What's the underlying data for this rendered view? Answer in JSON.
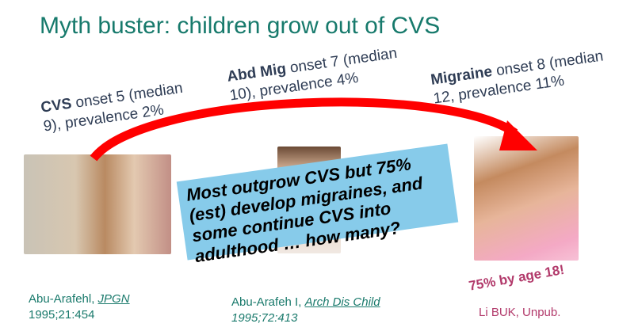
{
  "title": "Myth buster:  children grow out of CVS",
  "labels": [
    {
      "bold": "CVS",
      "line1": " onset 5 (median",
      "line2": "9), prevalence 2%"
    },
    {
      "bold": "Abd Mig",
      "line1": " onset 7  (median",
      "line2": "10), prevalence 4%"
    },
    {
      "bold": "Migraine",
      "line1": " onset 8 (median",
      "line2": "12, prevalence 11%"
    }
  ],
  "callout": "Most outgrow CVS but 75% (est) develop migraines, and some continue CVS into adulthood … how many?",
  "citations": [
    {
      "author": "Abu-Arafehl, ",
      "journal": "JPGN",
      "ref": "1995;21:454"
    },
    {
      "author": "Abu-Arafeh I, ",
      "journal": "Arch Dis Child",
      "ref": "1995;72:413"
    }
  ],
  "note": "75% by age 18!",
  "note_source": "Li BUK, Unpub.",
  "colors": {
    "title": "#177a6c",
    "arrow": "#ff0000",
    "callout_bg": "#87cbea",
    "note": "#b23a6b"
  }
}
